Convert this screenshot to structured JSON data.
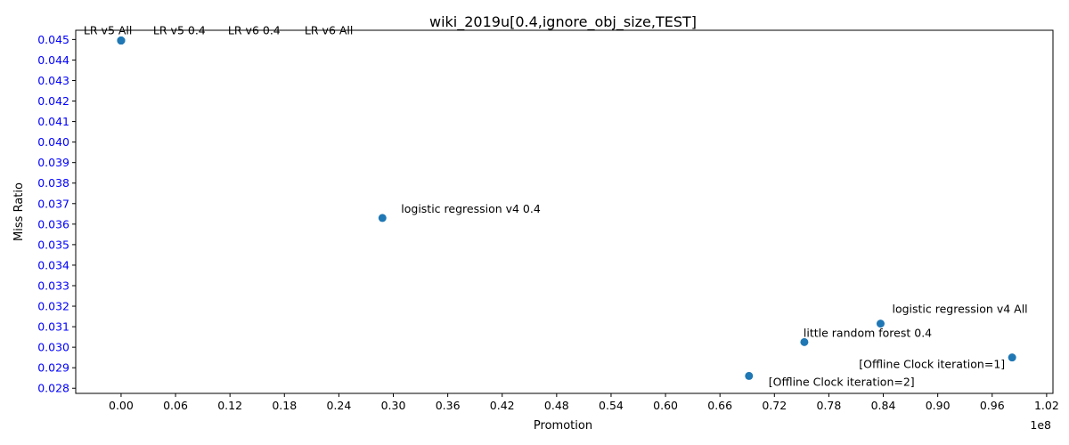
{
  "chart_data": {
    "type": "scatter",
    "title": "wiki_2019u[0.4,ignore_obj_size,TEST]",
    "xlabel": "Promotion",
    "ylabel": "Miss Ratio",
    "x_offset_label": "1e8",
    "xlim": [
      -0.05,
      1.027
    ],
    "ylim": [
      0.02775,
      0.04545
    ],
    "xticks": [
      "0.00",
      "0.06",
      "0.12",
      "0.18",
      "0.24",
      "0.30",
      "0.36",
      "0.42",
      "0.48",
      "0.54",
      "0.60",
      "0.66",
      "0.72",
      "0.78",
      "0.84",
      "0.90",
      "0.96",
      "1.02"
    ],
    "yticks": [
      "0.028",
      "0.029",
      "0.030",
      "0.031",
      "0.032",
      "0.033",
      "0.034",
      "0.035",
      "0.036",
      "0.037",
      "0.038",
      "0.039",
      "0.040",
      "0.041",
      "0.042",
      "0.043",
      "0.044",
      "0.045"
    ],
    "tick_colors": {
      "x": "#000000",
      "y": "#0000ff"
    },
    "marker_color": "#1f77b4",
    "points": [
      {
        "label": "LR v5 All",
        "x": 0.0,
        "y": 0.04495
      },
      {
        "label": "LR v5 0.4",
        "x": 0.0,
        "y": 0.04495
      },
      {
        "label": "LR v6 0.4",
        "x": 0.0,
        "y": 0.04495
      },
      {
        "label": "LR v6 All",
        "x": 0.0,
        "y": 0.04495
      },
      {
        "label": "logistic regression v4 0.4",
        "x": 0.288,
        "y": 0.0363
      },
      {
        "label": "logistic regression v4 All",
        "x": 0.837,
        "y": 0.03115
      },
      {
        "label": "little random forest 0.4",
        "x": 0.753,
        "y": 0.03025
      },
      {
        "label": "[Offline Clock iteration=1]",
        "x": 0.982,
        "y": 0.0295
      },
      {
        "label": "[Offline Clock iteration=2]",
        "x": 0.692,
        "y": 0.0286
      }
    ]
  }
}
